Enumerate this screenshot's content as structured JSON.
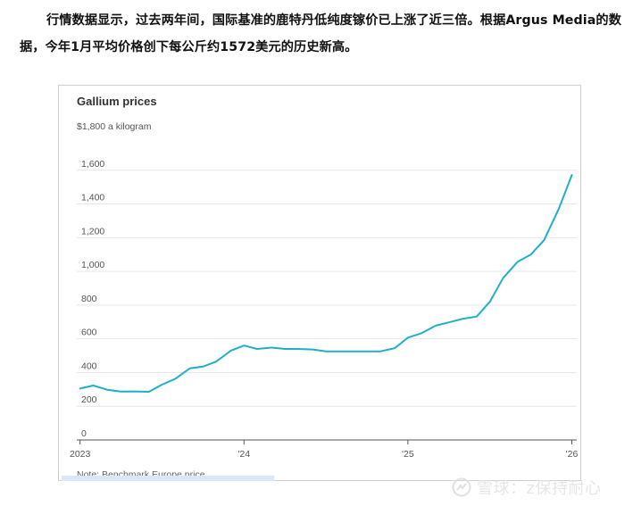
{
  "article": {
    "paragraph": "行情数据显示，过去两年间，国际基准的鹿特丹低纯度镓价已上涨了近三倍。根据Argus Media的数据，今年1月平均价格创下每公斤约1572美元的历史新高。"
  },
  "colors": {
    "line": "#1fb0c8",
    "grid": "#e6e6e6",
    "axis": "#555555",
    "text": "#333333"
  },
  "watermark": {
    "text": "雪球：z保持耐心"
  },
  "chart_data": {
    "type": "line",
    "title": "Gallium prices",
    "unit_label": "$1,800 a kilogram",
    "note": "Note: Benchmark Europe price",
    "y_ticks": [
      0,
      200,
      400,
      600,
      800,
      "1,000",
      "1,200",
      "1,400",
      "1,600"
    ],
    "ylim": [
      0,
      1800
    ],
    "x_ticks": [
      {
        "label": "2023",
        "x": 2023.0
      },
      {
        "label": "'24",
        "x": 2024.0
      },
      {
        "label": "'25",
        "x": 2025.0
      },
      {
        "label": "'26",
        "x": 2026.0
      }
    ],
    "xlim": [
      2022.98,
      2026.03
    ],
    "grid": true,
    "series": [
      {
        "values": [
          {
            "x": 2023.0,
            "y": 305
          },
          {
            "x": 2023.08,
            "y": 323
          },
          {
            "x": 2023.17,
            "y": 297
          },
          {
            "x": 2023.25,
            "y": 287
          },
          {
            "x": 2023.33,
            "y": 288
          },
          {
            "x": 2023.42,
            "y": 286
          },
          {
            "x": 2023.5,
            "y": 328
          },
          {
            "x": 2023.58,
            "y": 362
          },
          {
            "x": 2023.67,
            "y": 425
          },
          {
            "x": 2023.75,
            "y": 435
          },
          {
            "x": 2023.83,
            "y": 465
          },
          {
            "x": 2023.92,
            "y": 530
          },
          {
            "x": 2024.0,
            "y": 560
          },
          {
            "x": 2024.08,
            "y": 540
          },
          {
            "x": 2024.17,
            "y": 548
          },
          {
            "x": 2024.25,
            "y": 540
          },
          {
            "x": 2024.33,
            "y": 540
          },
          {
            "x": 2024.42,
            "y": 537
          },
          {
            "x": 2024.5,
            "y": 525
          },
          {
            "x": 2024.58,
            "y": 525
          },
          {
            "x": 2024.67,
            "y": 525
          },
          {
            "x": 2024.75,
            "y": 525
          },
          {
            "x": 2024.83,
            "y": 525
          },
          {
            "x": 2024.92,
            "y": 545
          },
          {
            "x": 2025.0,
            "y": 607
          },
          {
            "x": 2025.08,
            "y": 632
          },
          {
            "x": 2025.17,
            "y": 678
          },
          {
            "x": 2025.25,
            "y": 698
          },
          {
            "x": 2025.33,
            "y": 718
          },
          {
            "x": 2025.42,
            "y": 732
          },
          {
            "x": 2025.5,
            "y": 820
          },
          {
            "x": 2025.58,
            "y": 960
          },
          {
            "x": 2025.67,
            "y": 1058
          },
          {
            "x": 2025.75,
            "y": 1100
          },
          {
            "x": 2025.83,
            "y": 1185
          },
          {
            "x": 2025.92,
            "y": 1370
          },
          {
            "x": 2026.0,
            "y": 1572
          }
        ]
      }
    ]
  }
}
